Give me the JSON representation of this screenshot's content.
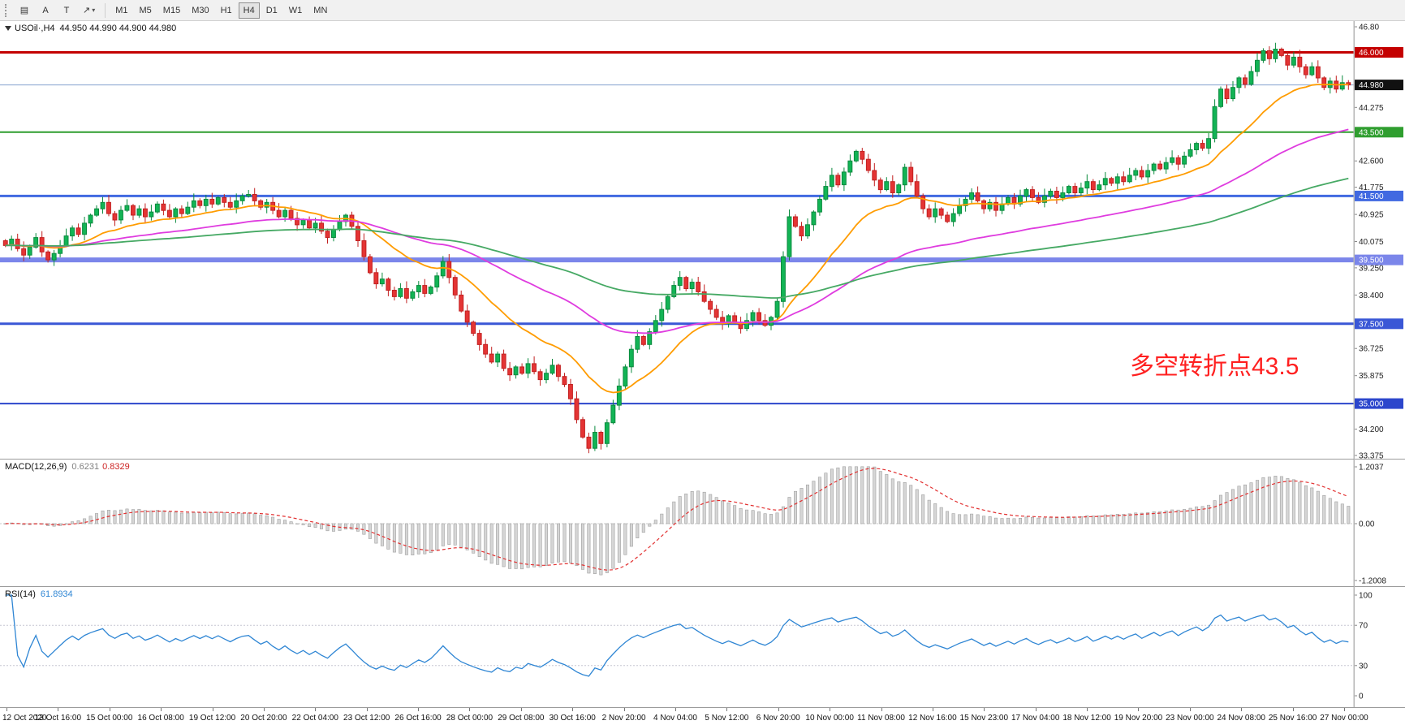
{
  "toolbar": {
    "icons": [
      {
        "name": "chart-grid-icon",
        "glyph": "▤"
      },
      {
        "name": "cursor-a-icon",
        "glyph": "A"
      },
      {
        "name": "text-tool-icon",
        "glyph": "T"
      },
      {
        "name": "line-studies-icon",
        "glyph": "↗",
        "dropdown": "▾"
      }
    ],
    "timeframes": [
      "M1",
      "M5",
      "M15",
      "M30",
      "H1",
      "H4",
      "D1",
      "W1",
      "MN"
    ],
    "active_timeframe": "H4"
  },
  "chart_header": {
    "symbol": "USOil·,H4",
    "ohlc": "44.950 44.990 44.900 44.980"
  },
  "annotation": {
    "text": "多空转折点43.5",
    "color": "#ff2020"
  },
  "price_axis": {
    "visible_ticks": [
      "46.80",
      "44.275",
      "42.600",
      "41.775",
      "40.925",
      "40.075",
      "39.250",
      "38.400",
      "36.725",
      "35.875",
      "34.200",
      "33.375"
    ],
    "tick_values": [
      46.8,
      44.275,
      42.6,
      41.775,
      40.925,
      40.075,
      39.25,
      38.4,
      36.725,
      35.875,
      34.2,
      33.375
    ]
  },
  "hlines": [
    {
      "price": 46.0,
      "label": "46.000",
      "color": "#c40000",
      "width": 3
    },
    {
      "price": 43.5,
      "label": "43.500",
      "color": "#2f9e2f",
      "width": 2
    },
    {
      "price": 41.5,
      "label": "41.500",
      "color": "#4169e1",
      "width": 3
    },
    {
      "price": 39.5,
      "label": "39.500",
      "color": "#7b86ea",
      "width": 6
    },
    {
      "price": 37.5,
      "label": "37.500",
      "color": "#3a57d6",
      "width": 3
    },
    {
      "price": 35.0,
      "label": "35.000",
      "color": "#2c46cc",
      "width": 2
    }
  ],
  "current_price": {
    "value": 44.98,
    "label": "44.980",
    "line_color": "#85a3cf",
    "badge_color": "#111111"
  },
  "chart_data": {
    "type": "candlestick",
    "symbol": "USOil",
    "timeframe": "H4",
    "price_min": 33.375,
    "price_max": 46.8,
    "up_color": "#0a8a3e",
    "up_fill": "#12b455",
    "down_color": "#c22020",
    "down_fill": "#e43434",
    "ma_overlays": [
      {
        "name": "fast-ma",
        "period": 20,
        "color": "#ff9c00"
      },
      {
        "name": "mid-ma",
        "period": 60,
        "color": "#df3cdf"
      },
      {
        "name": "slow-ma",
        "period": 130,
        "color": "#46a964"
      }
    ],
    "closes": [
      39.95,
      40.15,
      39.85,
      39.65,
      39.9,
      40.2,
      39.75,
      39.5,
      39.7,
      39.95,
      40.25,
      40.5,
      40.3,
      40.65,
      40.9,
      41.1,
      41.3,
      40.95,
      40.75,
      41.05,
      41.2,
      40.9,
      41.1,
      40.85,
      41.0,
      41.25,
      41.05,
      40.85,
      41.1,
      40.95,
      41.15,
      41.35,
      41.2,
      41.4,
      41.25,
      41.45,
      41.3,
      41.15,
      41.35,
      41.5,
      41.55,
      41.35,
      41.15,
      41.3,
      41.05,
      40.85,
      41.05,
      40.8,
      40.6,
      40.75,
      40.5,
      40.65,
      40.4,
      40.2,
      40.45,
      40.7,
      40.9,
      40.55,
      40.1,
      39.6,
      39.1,
      38.75,
      38.9,
      38.55,
      38.35,
      38.6,
      38.3,
      38.5,
      38.7,
      38.45,
      38.65,
      39.0,
      39.45,
      38.95,
      38.4,
      37.9,
      37.55,
      37.2,
      36.85,
      36.55,
      36.3,
      36.55,
      36.1,
      35.9,
      36.15,
      35.95,
      36.25,
      36.0,
      35.75,
      35.95,
      36.2,
      35.85,
      35.6,
      35.15,
      34.5,
      33.95,
      33.6,
      34.1,
      33.75,
      34.4,
      34.95,
      35.55,
      36.15,
      36.7,
      37.1,
      36.85,
      37.25,
      37.6,
      37.95,
      38.35,
      38.7,
      38.95,
      38.6,
      38.8,
      38.5,
      38.2,
      37.95,
      37.7,
      37.5,
      37.75,
      37.55,
      37.35,
      37.6,
      37.85,
      37.6,
      37.45,
      37.7,
      38.2,
      39.6,
      40.85,
      40.55,
      40.25,
      40.6,
      41.0,
      41.4,
      41.8,
      42.15,
      41.85,
      42.25,
      42.6,
      42.9,
      42.65,
      42.3,
      42.0,
      41.7,
      41.95,
      41.6,
      41.85,
      42.4,
      41.95,
      41.5,
      41.1,
      40.85,
      41.1,
      40.9,
      40.7,
      40.95,
      41.2,
      41.4,
      41.6,
      41.35,
      41.1,
      41.3,
      41.05,
      41.25,
      41.45,
      41.25,
      41.5,
      41.7,
      41.45,
      41.3,
      41.5,
      41.65,
      41.45,
      41.6,
      41.8,
      41.6,
      41.75,
      41.95,
      41.7,
      41.85,
      42.05,
      41.9,
      42.1,
      41.95,
      42.15,
      42.3,
      42.1,
      42.3,
      42.5,
      42.35,
      42.55,
      42.7,
      42.5,
      42.75,
      42.95,
      43.15,
      43.0,
      43.3,
      44.3,
      44.85,
      44.55,
      44.9,
      45.2,
      45.0,
      45.4,
      45.75,
      46.05,
      45.8,
      46.1,
      45.9,
      45.6,
      45.85,
      45.55,
      45.3,
      45.55,
      45.2,
      44.9,
      45.1,
      44.85,
      45.05,
      44.98
    ],
    "time_labels": [
      "12 Oct 2020",
      "13 Oct 16:00",
      "15 Oct 00:00",
      "16 Oct 08:00",
      "19 Oct 12:00",
      "20 Oct 20:00",
      "22 Oct 04:00",
      "23 Oct 12:00",
      "26 Oct 16:00",
      "28 Oct 00:00",
      "29 Oct 08:00",
      "30 Oct 16:00",
      "2 Nov 20:00",
      "4 Nov 04:00",
      "5 Nov 12:00",
      "6 Nov 20:00",
      "10 Nov 00:00",
      "11 Nov 08:00",
      "12 Nov 16:00",
      "15 Nov 23:00",
      "17 Nov 04:00",
      "18 Nov 12:00",
      "19 Nov 20:00",
      "23 Nov 00:00",
      "24 Nov 08:00",
      "25 Nov 16:00",
      "27 Nov 00:00"
    ]
  },
  "macd": {
    "name": "MACD(12,26,9)",
    "v1": "0.6231",
    "v2": "0.8329",
    "fast": 12,
    "slow": 26,
    "signal": 9,
    "axis_labels": [
      "1.2037",
      "0.00",
      "-1.2008"
    ],
    "range": 1.2037,
    "hist_color": "#d6d6d6",
    "hist_stroke": "#a0a0a0",
    "signal_color": "#e23030"
  },
  "rsi": {
    "name": "RSI(14)",
    "value": "61.8934",
    "period": 14,
    "axis_labels": [
      "100",
      "70",
      "30",
      "0"
    ],
    "levels": [
      70,
      30
    ],
    "line_color": "#2f86d4",
    "level_color": "#c6c6d2"
  }
}
